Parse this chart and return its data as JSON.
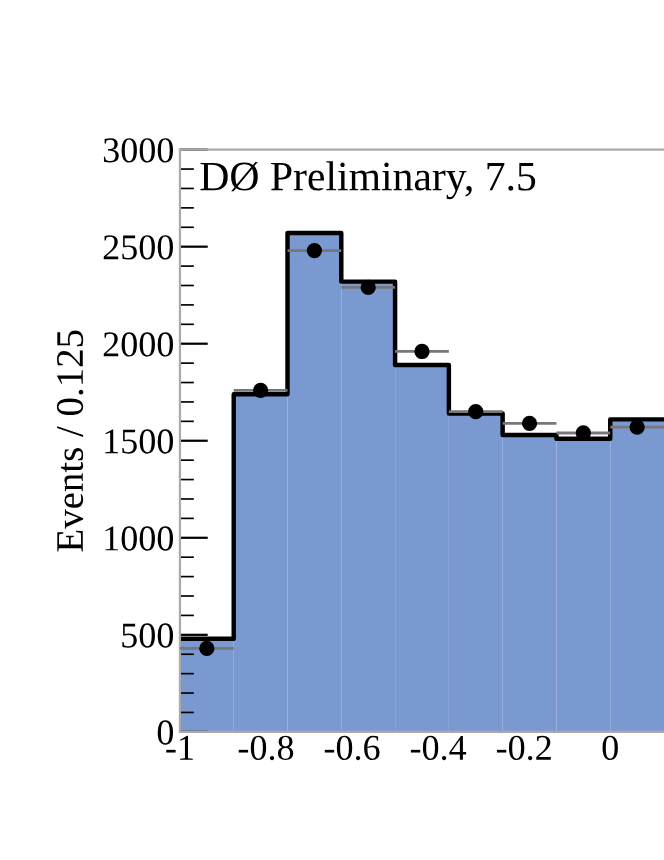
{
  "chart_data": {
    "type": "histogram",
    "ylabel": "Events / 0.125",
    "annotations": [
      "DØ Preliminary, 7.5"
    ],
    "bins": [
      -1,
      -0.875,
      -0.75,
      -0.625,
      -0.5,
      -0.375,
      -0.25,
      -0.125,
      0,
      0.125
    ],
    "series": [
      {
        "color": "#7a99d1",
        "values": [
          480,
          1740,
          2570,
          2320,
          1890,
          1640,
          1530,
          1510,
          1610
        ]
      },
      {
        "type": "step",
        "color": "#000000",
        "marker": "none",
        "x": [
          -1,
          -0.875,
          -0.75,
          -0.625,
          -0.5,
          -0.375,
          -0.25,
          -0.125,
          0,
          0.125
        ],
        "values": [
          480,
          1740,
          2570,
          2320,
          1890,
          1640,
          1530,
          1510,
          1610,
          1610
        ]
      },
      {
        "type": "scatter",
        "color": "#000000",
        "marker": "circle",
        "x": [
          -0.9375,
          -0.8125,
          -0.6875,
          -0.5625,
          -0.4375,
          -0.3125,
          -0.1875,
          -0.0625,
          0.0625
        ],
        "values": [
          430,
          1760,
          2480,
          2290,
          1960,
          1650,
          1590,
          1540,
          1570
        ],
        "xerrors": [
          0.0625,
          0.0625,
          0.0625,
          0.0625,
          0.0625,
          0.0625,
          0.0625,
          0.0625,
          0.0625
        ]
      }
    ],
    "xlim": [
      -1,
      0.125
    ],
    "ylim": [
      0,
      3000
    ],
    "xticks": [
      -1,
      -0.8,
      -0.6,
      -0.4,
      -0.2,
      0
    ],
    "yticks": [
      0,
      500,
      1000,
      1500,
      2000,
      2500,
      3000
    ],
    "grid": false,
    "legend": false
  }
}
